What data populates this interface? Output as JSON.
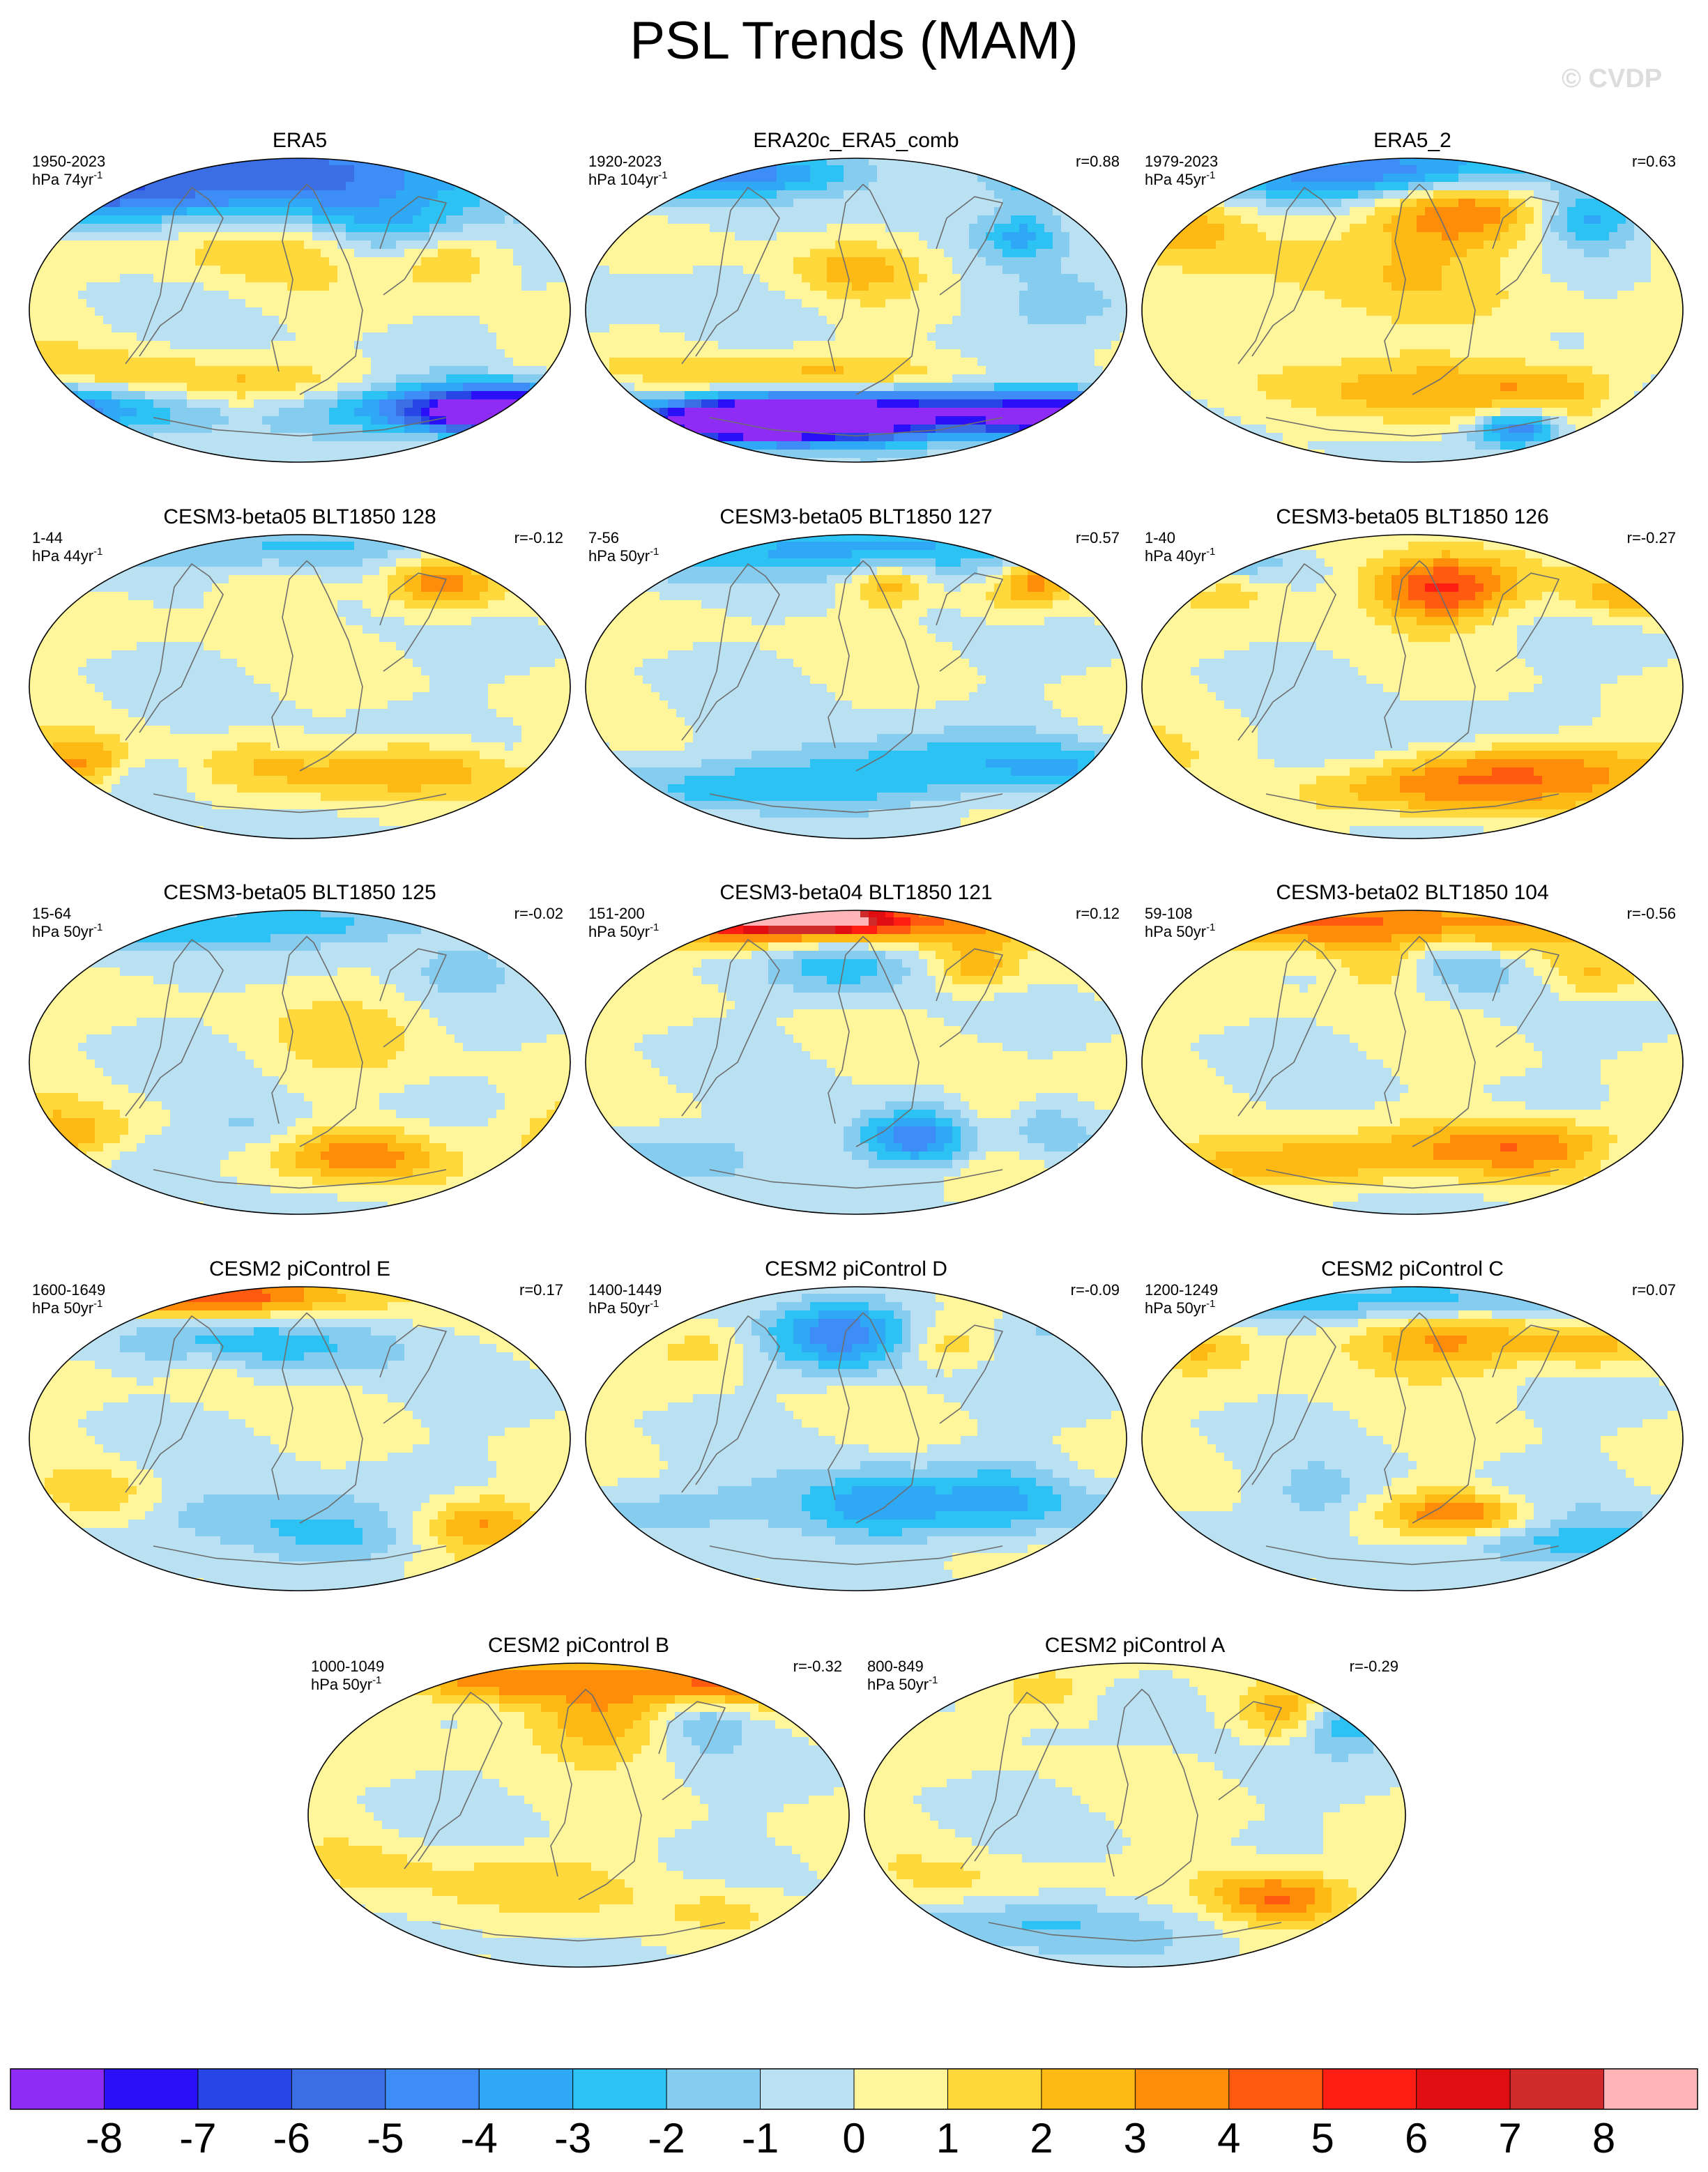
{
  "title": "PSL Trends (MAM)",
  "watermark": "© CVDP",
  "chart_data": {
    "type": "heatmap",
    "variable": "PSL",
    "season": "MAM",
    "projection": "Robinson (global)",
    "units": "hPa",
    "panels": [
      {
        "title": "ERA5",
        "years": "1950-2023",
        "units": "hPa 74yr",
        "r": null,
        "blobs": [
          [
            -40,
            80,
            140,
            20,
            -6
          ],
          [
            140,
            -55,
            110,
            12,
            -6
          ],
          [
            130,
            -62,
            40,
            8,
            -7
          ],
          [
            100,
            28,
            25,
            12,
            2.5
          ],
          [
            -30,
            40,
            45,
            15,
            2.2
          ],
          [
            -20,
            -45,
            90,
            10,
            2.5
          ],
          [
            -150,
            -38,
            60,
            10,
            2
          ],
          [
            -160,
            72,
            30,
            10,
            -4
          ],
          [
            60,
            50,
            30,
            12,
            -1.5
          ]
        ]
      },
      {
        "title": "ERA20c_ERA5_comb",
        "years": "1920-2023",
        "units": "hPa 104yr",
        "r": "r=0.88",
        "blobs": [
          [
            -70,
            82,
            50,
            10,
            -4.5
          ],
          [
            160,
            78,
            50,
            10,
            -5
          ],
          [
            50,
            -58,
            110,
            10,
            -5
          ],
          [
            -20,
            -65,
            60,
            10,
            -8
          ],
          [
            -80,
            -66,
            40,
            8,
            -8
          ],
          [
            140,
            -65,
            40,
            8,
            -8
          ],
          [
            -30,
            -40,
            90,
            10,
            2.5
          ],
          [
            0,
            25,
            30,
            12,
            2
          ],
          [
            110,
            45,
            20,
            10,
            -3
          ],
          [
            150,
            0,
            40,
            15,
            -1.5
          ]
        ]
      },
      {
        "title": "ERA5_2",
        "years": "1979-2023",
        "units": "hPa 45yr",
        "r": "r=0.63",
        "blobs": [
          [
            -20,
            82,
            90,
            12,
            -5.5
          ],
          [
            30,
            60,
            40,
            16,
            4.5
          ],
          [
            120,
            55,
            25,
            12,
            -3.5
          ],
          [
            -150,
            52,
            30,
            14,
            2
          ],
          [
            -40,
            15,
            80,
            25,
            1.5
          ],
          [
            40,
            -48,
            100,
            14,
            2.5
          ],
          [
            70,
            -70,
            20,
            8,
            -5.5
          ],
          [
            100,
            -45,
            35,
            10,
            1.2
          ],
          [
            160,
            -50,
            35,
            12,
            -1.5
          ]
        ]
      },
      {
        "title": "CESM3-beta05 BLT1850 128",
        "years": "1-44",
        "units": "hPa 44yr",
        "r": "r=-0.12",
        "blobs": [
          [
            -10,
            82,
            90,
            10,
            -2.5
          ],
          [
            60,
            -48,
            100,
            12,
            3
          ],
          [
            95,
            60,
            25,
            12,
            3.5
          ],
          [
            -20,
            60,
            25,
            12,
            1.5
          ],
          [
            -140,
            -45,
            25,
            10,
            2.5
          ],
          [
            -100,
            -50,
            25,
            10,
            -2
          ],
          [
            20,
            -40,
            30,
            12,
            -1.2
          ],
          [
            140,
            -40,
            20,
            10,
            -1
          ]
        ]
      },
      {
        "title": "CESM3-beta05 BLT1850 127",
        "years": "7-56",
        "units": "hPa 50yr",
        "r": "r=0.57",
        "blobs": [
          [
            0,
            82,
            160,
            12,
            -3.5
          ],
          [
            20,
            60,
            20,
            10,
            3
          ],
          [
            120,
            65,
            15,
            10,
            3.5
          ],
          [
            50,
            -45,
            80,
            12,
            -2.5
          ],
          [
            -50,
            -60,
            80,
            10,
            -2.5
          ],
          [
            140,
            -50,
            30,
            10,
            -1.5
          ],
          [
            100,
            50,
            20,
            10,
            1.3
          ]
        ]
      },
      {
        "title": "CESM3-beta05 BLT1850 126",
        "years": "1-40",
        "units": "hPa 40yr",
        "r": "r=-0.27",
        "blobs": [
          [
            20,
            58,
            35,
            14,
            5.5
          ],
          [
            -120,
            70,
            30,
            10,
            -2.5
          ],
          [
            -120,
            60,
            25,
            10,
            2.5
          ],
          [
            80,
            -50,
            80,
            14,
            4
          ],
          [
            140,
            55,
            25,
            10,
            2.5
          ],
          [
            -40,
            -40,
            40,
            10,
            -1.5
          ],
          [
            30,
            -30,
            40,
            12,
            -1.2
          ],
          [
            -10,
            -65,
            60,
            10,
            1.5
          ]
        ]
      },
      {
        "title": "CESM3-beta05 BLT1850 125",
        "years": "15-64",
        "units": "hPa 50yr",
        "r": "r=-0.02",
        "blobs": [
          [
            -60,
            82,
            120,
            10,
            -3
          ],
          [
            -160,
            -45,
            40,
            12,
            3
          ],
          [
            40,
            -55,
            40,
            12,
            3.5
          ],
          [
            110,
            55,
            25,
            10,
            -2
          ],
          [
            -30,
            -40,
            30,
            10,
            -1.5
          ],
          [
            -110,
            -50,
            30,
            10,
            -1.2
          ],
          [
            40,
            20,
            40,
            20,
            1.3
          ]
        ]
      },
      {
        "title": "CESM3-beta04 BLT1850 121",
        "years": "151-200",
        "units": "hPa 50yr",
        "r": "r=0.12",
        "blobs": [
          [
            -40,
            83,
            100,
            10,
            6
          ],
          [
            -30,
            85,
            30,
            5,
            8
          ],
          [
            -10,
            60,
            35,
            15,
            -2.5
          ],
          [
            40,
            -45,
            30,
            12,
            -5
          ],
          [
            90,
            -35,
            20,
            20,
            2
          ],
          [
            120,
            -40,
            25,
            10,
            -1.5
          ],
          [
            -120,
            -55,
            50,
            12,
            -1.5
          ],
          [
            80,
            55,
            20,
            10,
            2.5
          ]
        ]
      },
      {
        "title": "CESM3-beta02 BLT1850 104",
        "years": "59-108",
        "units": "hPa 50yr",
        "r": "r=-0.56",
        "blobs": [
          [
            -50,
            82,
            140,
            12,
            4
          ],
          [
            80,
            -50,
            60,
            12,
            4
          ],
          [
            -90,
            -60,
            60,
            10,
            3
          ],
          [
            150,
            -55,
            30,
            10,
            -2
          ],
          [
            20,
            60,
            25,
            12,
            -1.5
          ],
          [
            -20,
            55,
            20,
            10,
            2
          ],
          [
            50,
            55,
            20,
            10,
            -1
          ],
          [
            120,
            50,
            20,
            10,
            2
          ]
        ]
      },
      {
        "title": "CESM2 piControl E",
        "years": "1600-1649",
        "units": "hPa 50yr",
        "r": "r=0.17",
        "blobs": [
          [
            -60,
            84,
            70,
            10,
            5
          ],
          [
            -30,
            58,
            70,
            14,
            -2.5
          ],
          [
            120,
            -50,
            30,
            12,
            3.5
          ],
          [
            -20,
            -45,
            60,
            12,
            -2
          ],
          [
            -130,
            -35,
            25,
            12,
            1.5
          ],
          [
            30,
            -60,
            40,
            10,
            -2
          ],
          [
            -60,
            40,
            20,
            10,
            1.5
          ]
        ]
      },
      {
        "title": "CESM2 piControl D",
        "years": "1400-1449",
        "units": "hPa 50yr",
        "r": "r=-0.09",
        "blobs": [
          [
            -10,
            62,
            35,
            15,
            -4.5
          ],
          [
            20,
            -40,
            40,
            15,
            -4
          ],
          [
            100,
            -35,
            25,
            15,
            -2
          ],
          [
            -130,
            -40,
            80,
            12,
            -1.5
          ],
          [
            -100,
            55,
            25,
            10,
            1.5
          ],
          [
            130,
            65,
            30,
            10,
            -1.5
          ],
          [
            60,
            55,
            20,
            10,
            2
          ]
        ]
      },
      {
        "title": "CESM2 piControl C",
        "years": "1200-1249",
        "units": "hPa 50yr",
        "r": "r=0.07",
        "blobs": [
          [
            20,
            58,
            50,
            14,
            3.5
          ],
          [
            40,
            -45,
            40,
            10,
            4.5
          ],
          [
            -10,
            82,
            120,
            10,
            -3
          ],
          [
            -60,
            -35,
            30,
            12,
            -1.5
          ],
          [
            100,
            -60,
            60,
            10,
            -3
          ],
          [
            120,
            55,
            25,
            10,
            2
          ],
          [
            -140,
            55,
            25,
            10,
            2
          ],
          [
            80,
            -40,
            30,
            10,
            -1.5
          ]
        ]
      },
      {
        "title": "CESM2 piControl B",
        "years": "1000-1049",
        "units": "hPa 50yr",
        "r": "r=-0.32",
        "blobs": [
          [
            -40,
            80,
            70,
            10,
            3.5
          ],
          [
            110,
            80,
            40,
            10,
            4
          ],
          [
            20,
            55,
            40,
            15,
            3
          ],
          [
            80,
            55,
            25,
            12,
            -2.5
          ],
          [
            -40,
            -40,
            60,
            15,
            1.5
          ],
          [
            100,
            -55,
            30,
            10,
            1.2
          ],
          [
            -150,
            -30,
            25,
            10,
            1
          ]
        ]
      },
      {
        "title": "CESM2 piControl A",
        "years": "800-849",
        "units": "hPa 50yr",
        "r": "r=-0.29",
        "blobs": [
          [
            140,
            55,
            25,
            12,
            -3
          ],
          [
            100,
            60,
            20,
            12,
            3
          ],
          [
            -50,
            -65,
            70,
            12,
            -2
          ],
          [
            100,
            -50,
            30,
            10,
            3.5
          ],
          [
            -50,
            70,
            35,
            10,
            2
          ],
          [
            -10,
            70,
            30,
            8,
            -1.5
          ],
          [
            80,
            -40,
            40,
            12,
            1.5
          ],
          [
            -120,
            -40,
            40,
            12,
            1
          ]
        ]
      }
    ],
    "colorbar": {
      "levels": [
        "-8",
        "-7",
        "-6",
        "-5",
        "-4",
        "-3",
        "-2",
        "-1",
        "0",
        "1",
        "2",
        "3",
        "4",
        "5",
        "6",
        "7",
        "8"
      ],
      "colors": [
        "#8e2cf6",
        "#2a10f8",
        "#2845e6",
        "#3b6ee5",
        "#3e8df6",
        "#2fa9f6",
        "#2cc2f4",
        "#86ccef",
        "#b9e1f2",
        "#fff59a",
        "#ffd93b",
        "#ffb914",
        "#ff8d0a",
        "#ff5a10",
        "#ff1d14",
        "#e00e10",
        "#d02a2a",
        "#ffb4b8"
      ]
    }
  }
}
